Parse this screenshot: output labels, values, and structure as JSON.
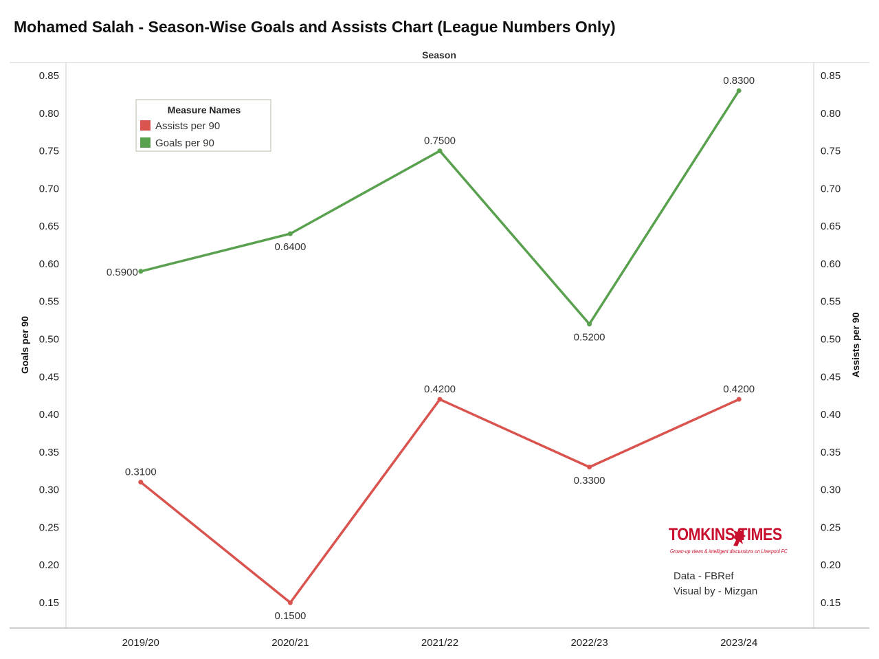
{
  "page": {
    "title": "Mohamed Salah - Season-Wise Goals and Assists Chart (League Numbers Only)",
    "credits": [
      "Data - FBRef",
      "Visual by - Mizgan"
    ],
    "logo": {
      "name": "TOMKINS TIMES",
      "tagline": "Grown-up views & intelligent discussions on Liverpool FC"
    }
  },
  "chart_data": {
    "type": "line",
    "xlabel": "Season",
    "ylabel_left": "Goals per 90",
    "ylabel_right": "Assists per 90",
    "categories": [
      "2019/20",
      "2020/21",
      "2021/22",
      "2022/23",
      "2023/24"
    ],
    "ylim": [
      0.12,
      0.87
    ],
    "yticks": [
      "0.15",
      "0.20",
      "0.25",
      "0.30",
      "0.35",
      "0.40",
      "0.45",
      "0.50",
      "0.55",
      "0.60",
      "0.65",
      "0.70",
      "0.75",
      "0.80",
      "0.85"
    ],
    "legend": {
      "title": "Measure Names",
      "position": "top-left"
    },
    "grid": false,
    "series": [
      {
        "name": "Assists per 90",
        "color": "#d9534f",
        "values": [
          0.31,
          0.15,
          0.42,
          0.33,
          0.42
        ],
        "labels": [
          "0.3100",
          "0.1500",
          "0.4200",
          "0.3300",
          "0.4200"
        ],
        "label_side": [
          "above",
          "below",
          "above",
          "below",
          "above"
        ]
      },
      {
        "name": "Goals per 90",
        "color": "#59a14f",
        "values": [
          0.59,
          0.64,
          0.75,
          0.52,
          0.83
        ],
        "labels": [
          "0.5900",
          "0.6400",
          "0.7500",
          "0.5200",
          "0.8300"
        ],
        "label_side": [
          "left",
          "below",
          "above",
          "below",
          "above"
        ]
      }
    ]
  }
}
